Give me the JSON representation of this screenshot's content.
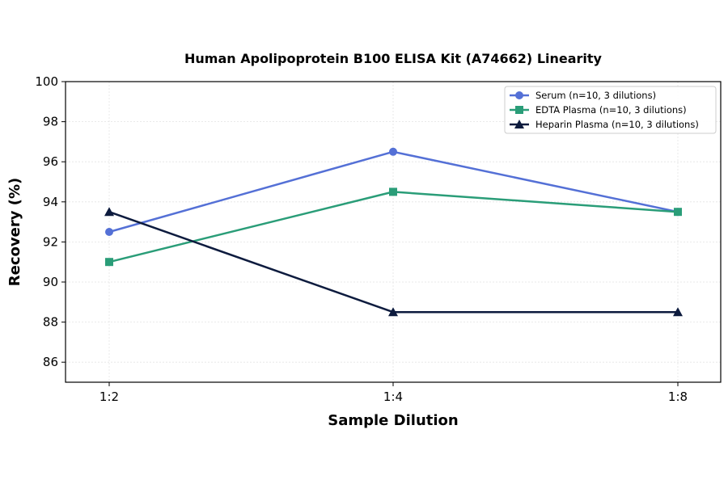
{
  "chart_data": {
    "type": "line",
    "title": "Human Apolipoprotein B100 ELISA Kit (A74662) Linearity",
    "xlabel": "Sample Dilution",
    "ylabel": "Recovery (%)",
    "categories": [
      "1:2",
      "1:4",
      "1:8"
    ],
    "ylim": [
      85,
      100
    ],
    "yticks": [
      86,
      88,
      90,
      92,
      94,
      96,
      98,
      100
    ],
    "grid": true,
    "legend_position": "top-right",
    "series": [
      {
        "name": "Serum (n=10, 3 dilutions)",
        "values": [
          92.5,
          96.5,
          93.5
        ],
        "color": "#5470d6",
        "marker": "circle"
      },
      {
        "name": "EDTA Plasma (n=10, 3 dilutions)",
        "values": [
          91.0,
          94.5,
          93.5
        ],
        "color": "#2a9d78",
        "marker": "square"
      },
      {
        "name": "Heparin Plasma (n=10, 3 dilutions)",
        "values": [
          93.5,
          88.5,
          88.5
        ],
        "color": "#0d1b3e",
        "marker": "triangle"
      }
    ]
  }
}
